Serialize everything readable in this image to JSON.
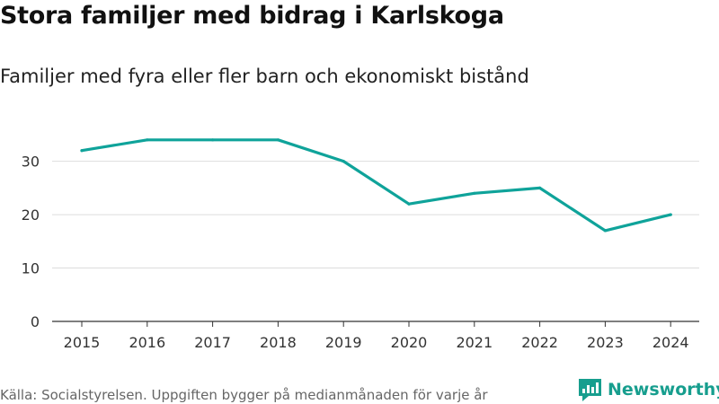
{
  "title": "Stora familjer med bidrag i Karlskoga",
  "subtitle": "Familjer med fyra eller fler barn och ekonomiskt bistånd",
  "source": "Källa: Socialstyrelsen. Uppgiften bygger på medianmånaden för varje år",
  "brand": {
    "name": "Newsworthy",
    "icon": "bar-chart-logo-icon",
    "color": "#179e8e"
  },
  "chart_data": {
    "type": "line",
    "x": [
      "2015",
      "2016",
      "2017",
      "2018",
      "2019",
      "2020",
      "2021",
      "2022",
      "2023",
      "2024"
    ],
    "series": [
      {
        "values": [
          32,
          34,
          34,
          34,
          30,
          22,
          24,
          25,
          17,
          20
        ],
        "color": "#0fa39a"
      }
    ],
    "yticks": [
      0,
      10,
      20,
      30
    ],
    "ylim": [
      0,
      37
    ],
    "grid": true,
    "title": "Stora familjer med bidrag i Karlskoga",
    "subtitle": "Familjer med fyra eller fler barn och ekonomiskt bistånd",
    "xlabel": "",
    "ylabel": ""
  }
}
